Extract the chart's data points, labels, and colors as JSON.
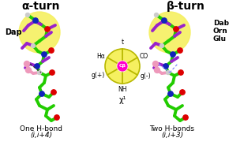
{
  "title_left": "α-turn",
  "title_right": "β-turn",
  "label_left": "Dap",
  "label_right_lines": [
    "Dab",
    "Orn",
    "Glu"
  ],
  "hbond_left": "One H-bond",
  "hbond_left_sub": "(i,i+4)",
  "hbond_right": "Two H-bonds",
  "hbond_right_sub": "(i,i+3)",
  "center_top": "t",
  "center_ha": "Hα",
  "center_co": "CO",
  "center_gp": "g(+)",
  "center_gm": "g(-)",
  "center_nh": "NH",
  "center_cb": "Cβ",
  "center_chi": "χ¹",
  "bg_color": "#ffffff",
  "yellow_circle_color": "#f5f060",
  "yellow_circle_edge": "#b8b800",
  "circle_center_color": "#ff00cc",
  "mol_green": "#22cc00",
  "mol_blue": "#1122bb",
  "mol_purple": "#9922cc",
  "mol_red": "#dd0000",
  "mol_white": "#cccccc",
  "mol_pink": "#ee99bb",
  "hbond_dash_color": "#333333",
  "hbond_dash2_color": "#8888ff"
}
